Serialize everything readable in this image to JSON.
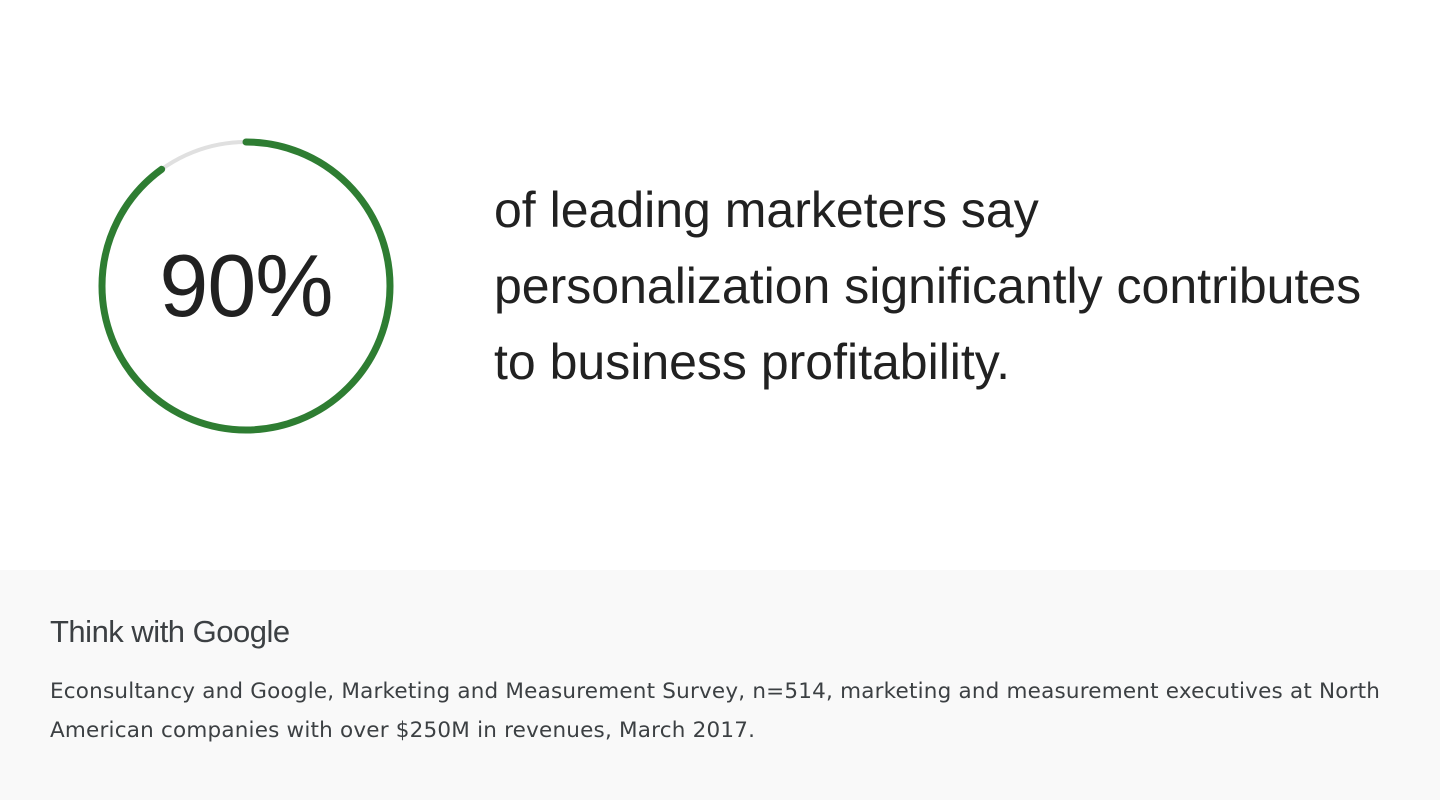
{
  "stat": {
    "value_label": "90%",
    "percent": 90,
    "color": "#2e7d32",
    "track_color": "#e0e0e0"
  },
  "statement": "of leading marketers say personalization significantly contributes to business profitability.",
  "footer": {
    "logo": "Think with Google",
    "source": "Econsultancy and Google, Marketing and Measurement Survey, n=514, marketing and measurement executives at North American companies with over $250M in revenues, March 2017."
  }
}
